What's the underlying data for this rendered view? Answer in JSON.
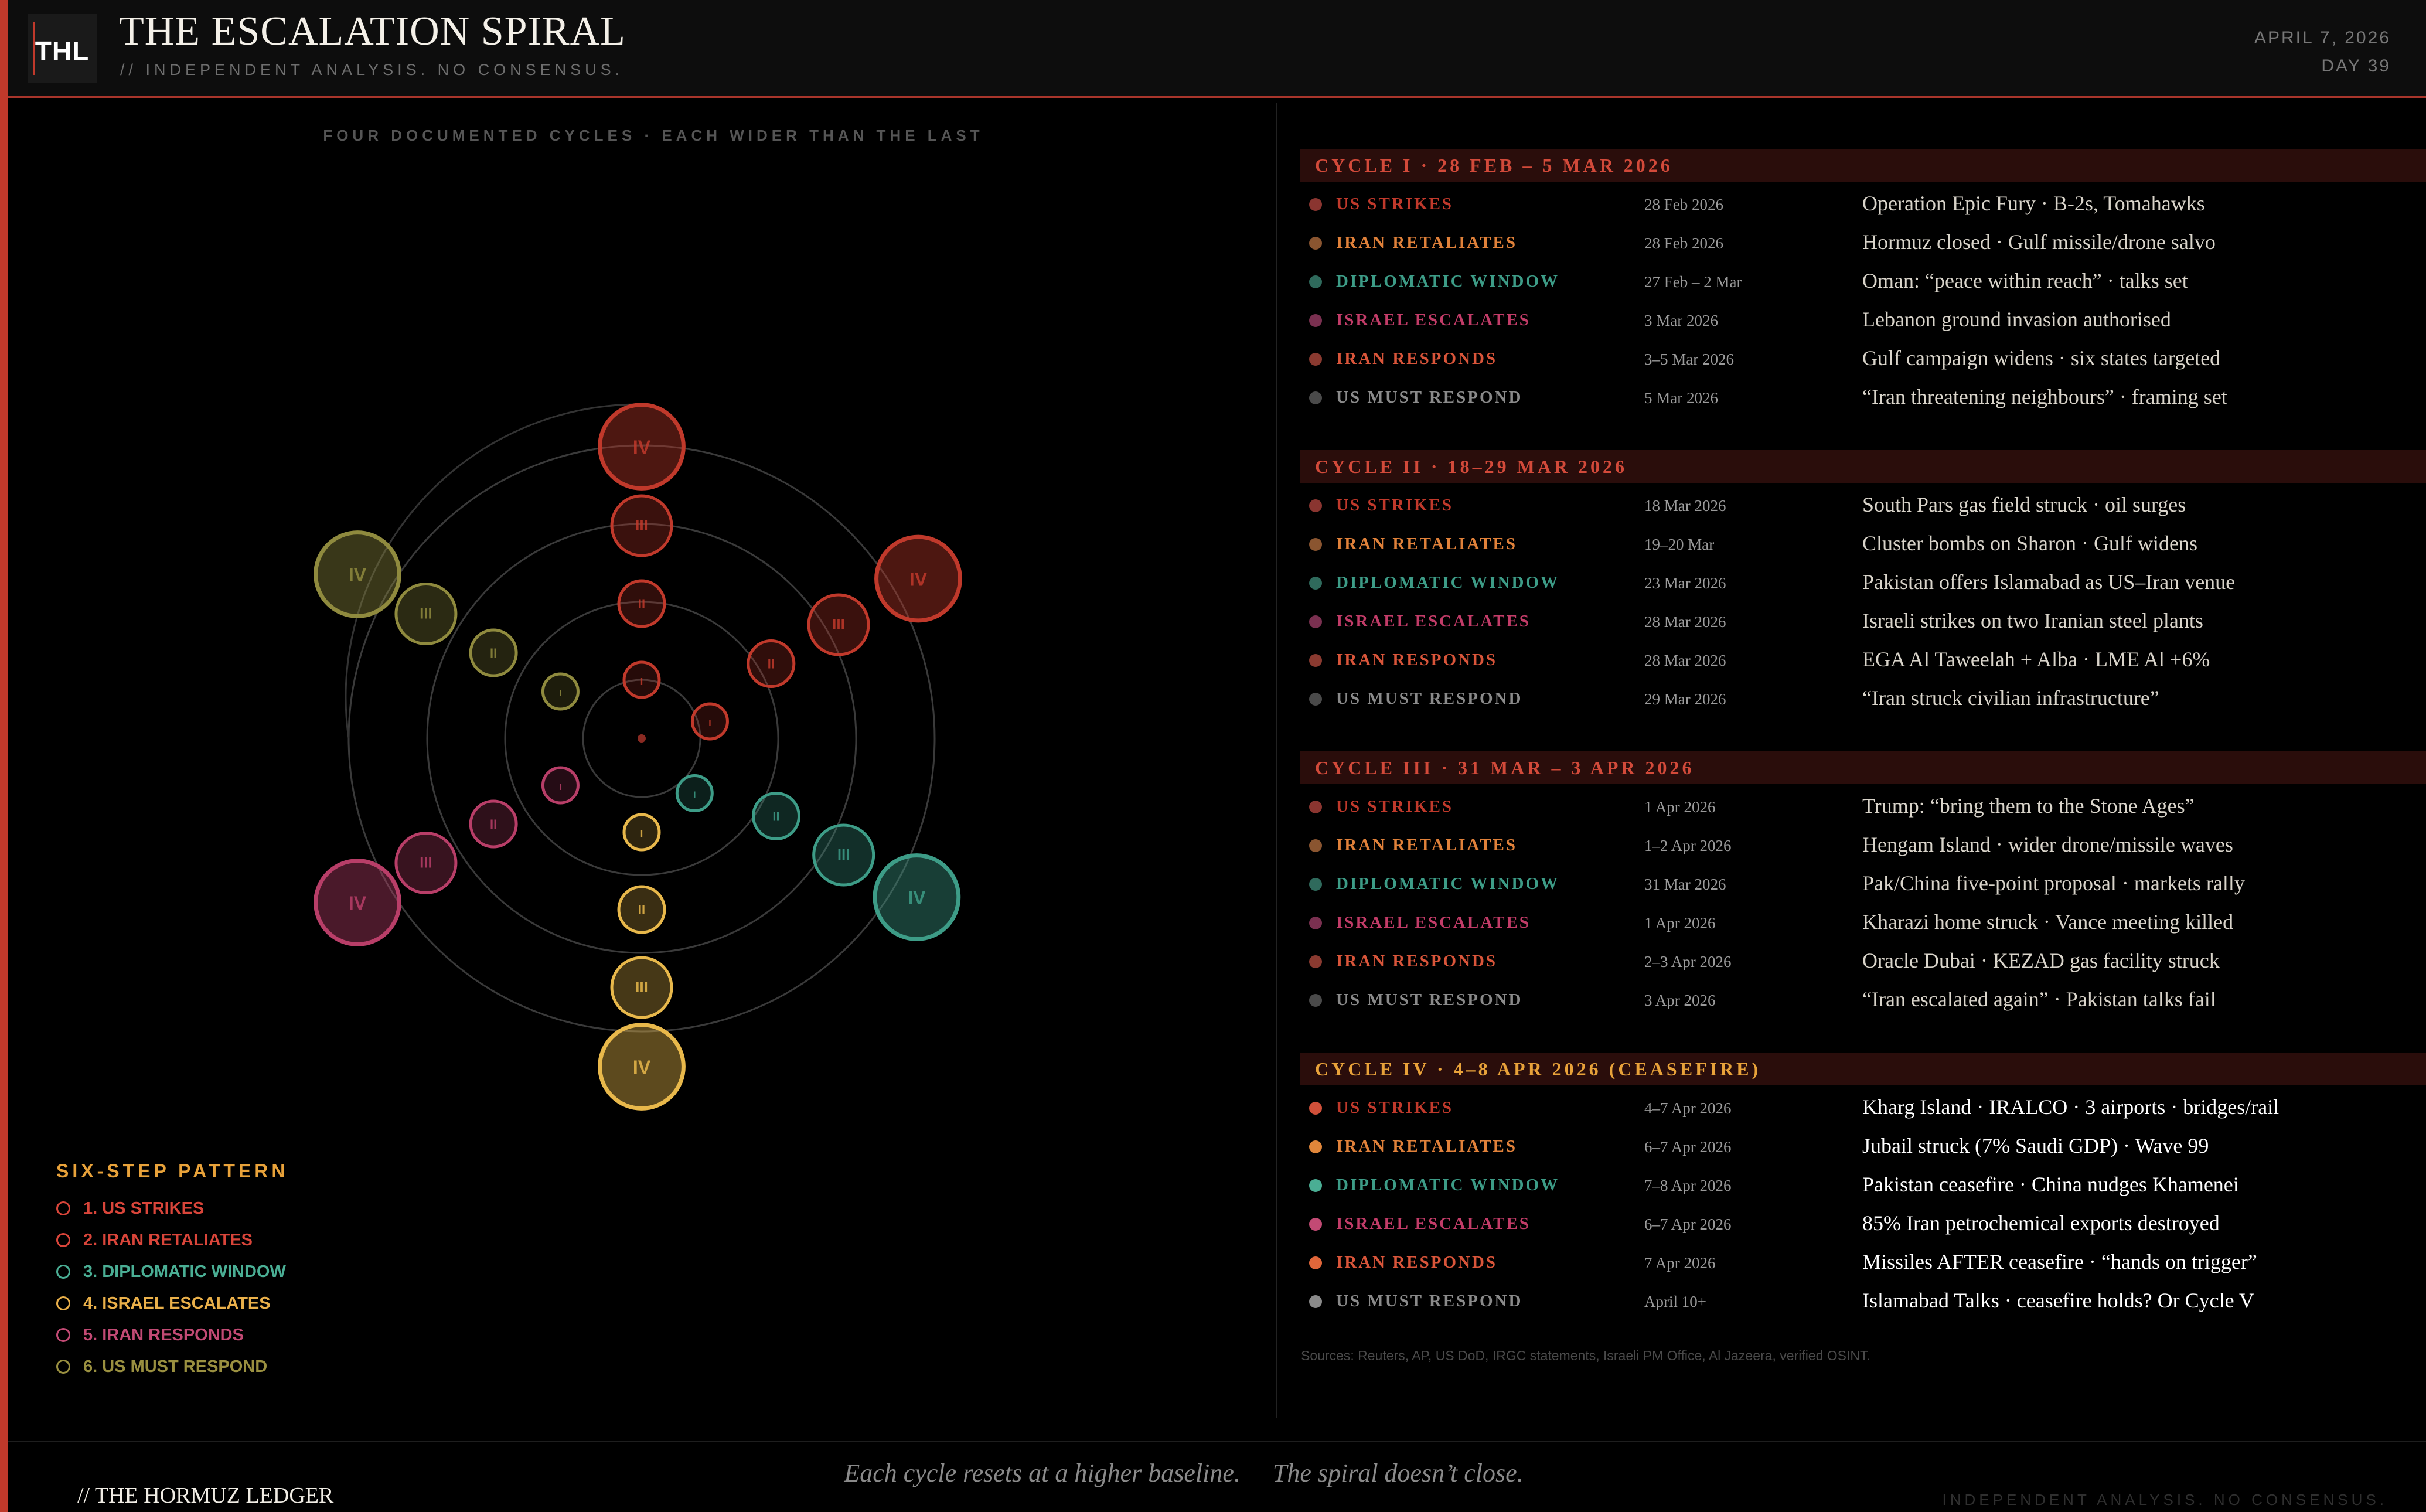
{
  "header": {
    "logo": "THL",
    "title": "THE ESCALATION SPIRAL",
    "subtitle": "// INDEPENDENT ANALYSIS. NO CONSENSUS.",
    "date": "APRIL 7, 2026",
    "day": "DAY 39"
  },
  "spiral": {
    "caption": "FOUR DOCUMENTED CYCLES · EACH WIDER THAN THE LAST",
    "cycle_labels": [
      "I",
      "II",
      "III",
      "IV"
    ],
    "colors": [
      "#c0392b",
      "#c0392b",
      "#3d9c87",
      "#e8b84b",
      "#b83e68",
      "#8f8a3e"
    ]
  },
  "legend": {
    "title": "SIX-STEP PATTERN",
    "items": [
      {
        "label": "1. US STRIKES",
        "color": "#d9453a"
      },
      {
        "label": "2. IRAN RETALIATES",
        "color": "#d9453a"
      },
      {
        "label": "3. DIPLOMATIC WINDOW",
        "color": "#4aae94"
      },
      {
        "label": "4. ISRAEL ESCALATES",
        "color": "#eab04a"
      },
      {
        "label": "5. IRAN RESPONDS",
        "color": "#c24a74"
      },
      {
        "label": "6. US MUST RESPOND",
        "color": "#9a9040"
      }
    ]
  },
  "cycles": [
    {
      "title": "CYCLE I · 28 FEB – 5 MAR 2026",
      "title_color": "#d24a3a",
      "rows": [
        {
          "label": "US STRIKES",
          "date": "28 Feb 2026",
          "desc": "Operation Epic Fury · B-2s, Tomahawks",
          "color": "#c0392b",
          "dot": "#8a3530"
        },
        {
          "label": "IRAN RETALIATES",
          "date": "28 Feb 2026",
          "desc": "Hormuz closed · Gulf missile/drone salvo",
          "color": "#e0813a",
          "dot": "#8a5530"
        },
        {
          "label": "DIPLOMATIC WINDOW",
          "date": "27 Feb – 2 Mar",
          "desc": "Oman: “peace within reach” · talks set",
          "color": "#3d9c87",
          "dot": "#2f6a5c"
        },
        {
          "label": "ISRAEL ESCALATES",
          "date": "3 Mar 2026",
          "desc": "Lebanon ground invasion authorised",
          "color": "#c23c68",
          "dot": "#7a3050"
        },
        {
          "label": "IRAN RESPONDS",
          "date": "3–5 Mar 2026",
          "desc": "Gulf campaign widens · six states targeted",
          "color": "#d9553a",
          "dot": "#8a3a30"
        },
        {
          "label": "US MUST RESPOND",
          "date": "5 Mar 2026",
          "desc": "“Iran threatening neighbours” · framing set",
          "color": "#8a8a8a",
          "dot": "#4a4a4a"
        }
      ]
    },
    {
      "title": "CYCLE II · 18–29 MAR 2026",
      "title_color": "#d24a3a",
      "rows": [
        {
          "label": "US STRIKES",
          "date": "18 Mar 2026",
          "desc": "South Pars gas field struck · oil surges",
          "color": "#c0392b",
          "dot": "#8a3530"
        },
        {
          "label": "IRAN RETALIATES",
          "date": "19–20 Mar",
          "desc": "Cluster bombs on Sharon · Gulf widens",
          "color": "#e0813a",
          "dot": "#8a5530"
        },
        {
          "label": "DIPLOMATIC WINDOW",
          "date": "23 Mar 2026",
          "desc": "Pakistan offers Islamabad as US–Iran venue",
          "color": "#3d9c87",
          "dot": "#2f6a5c"
        },
        {
          "label": "ISRAEL ESCALATES",
          "date": "28 Mar 2026",
          "desc": "Israeli strikes on two Iranian steel plants",
          "color": "#c23c68",
          "dot": "#7a3050"
        },
        {
          "label": "IRAN RESPONDS",
          "date": "28 Mar 2026",
          "desc": "EGA Al Taweelah + Alba · LME Al +6%",
          "color": "#d9553a",
          "dot": "#8a3a30"
        },
        {
          "label": "US MUST RESPOND",
          "date": "29 Mar 2026",
          "desc": "“Iran struck civilian infrastructure”",
          "color": "#8a8a8a",
          "dot": "#4a4a4a"
        }
      ]
    },
    {
      "title": "CYCLE III · 31 MAR – 3 APR 2026",
      "title_color": "#d24a3a",
      "rows": [
        {
          "label": "US STRIKES",
          "date": "1 Apr 2026",
          "desc": "Trump: “bring them to the Stone Ages”",
          "color": "#c0392b",
          "dot": "#8a3530"
        },
        {
          "label": "IRAN RETALIATES",
          "date": "1–2 Apr 2026",
          "desc": "Hengam Island · wider drone/missile waves",
          "color": "#e0813a",
          "dot": "#8a5530"
        },
        {
          "label": "DIPLOMATIC WINDOW",
          "date": "31 Mar 2026",
          "desc": "Pak/China five-point proposal · markets rally",
          "color": "#3d9c87",
          "dot": "#2f6a5c"
        },
        {
          "label": "ISRAEL ESCALATES",
          "date": "1 Apr 2026",
          "desc": "Kharazi home struck · Vance meeting killed",
          "color": "#c23c68",
          "dot": "#7a3050"
        },
        {
          "label": "IRAN RESPONDS",
          "date": "2–3 Apr 2026",
          "desc": "Oracle Dubai · KEZAD gas facility struck",
          "color": "#d9553a",
          "dot": "#8a3a30"
        },
        {
          "label": "US MUST RESPOND",
          "date": "3 Apr 2026",
          "desc": "“Iran escalated again” · Pakistan talks fail",
          "color": "#8a8a8a",
          "dot": "#4a4a4a"
        }
      ]
    },
    {
      "title": "CYCLE IV · 4–8 APR 2026 (CEASEFIRE)",
      "title_color": "#e8a23a",
      "rows": [
        {
          "label": "US STRIKES",
          "date": "4–7 Apr 2026",
          "desc": "Kharg Island · IRALCO · 3 airports · bridges/rail",
          "color": "#c0392b",
          "dot": "#d0503a"
        },
        {
          "label": "IRAN RETALIATES",
          "date": "6–7 Apr 2026",
          "desc": "Jubail struck (7% Saudi GDP) · Wave 99",
          "color": "#e0813a",
          "dot": "#e0863a"
        },
        {
          "label": "DIPLOMATIC WINDOW",
          "date": "7–8 Apr 2026",
          "desc": "Pakistan ceasefire · China nudges Khamenei",
          "color": "#3d9c87",
          "dot": "#4aae94"
        },
        {
          "label": "ISRAEL ESCALATES",
          "date": "6–7 Apr 2026",
          "desc": "85% Iran petrochemical exports destroyed",
          "color": "#c23c68",
          "dot": "#c24a74"
        },
        {
          "label": "IRAN RESPONDS",
          "date": "7 Apr 2026",
          "desc": "Missiles AFTER ceasefire · “hands on trigger”",
          "color": "#d9553a",
          "dot": "#e0663a"
        },
        {
          "label": "US MUST RESPOND",
          "date": "April 10+",
          "desc": "Islamabad Talks · ceasefire holds? Or Cycle V",
          "color": "#8a8a8a",
          "dot": "#8a8a8a"
        }
      ]
    }
  ],
  "sources": "Sources: Reuters, AP, US DoD, IRGC statements, Israeli PM Office, Al Jazeera, verified OSINT.",
  "footer": {
    "brand": "// THE HORMUZ LEDGER",
    "quote": "Each cycle resets at a higher baseline.     The spiral doesn’t close.",
    "tag": "INDEPENDENT ANALYSIS. NO CONSENSUS."
  }
}
